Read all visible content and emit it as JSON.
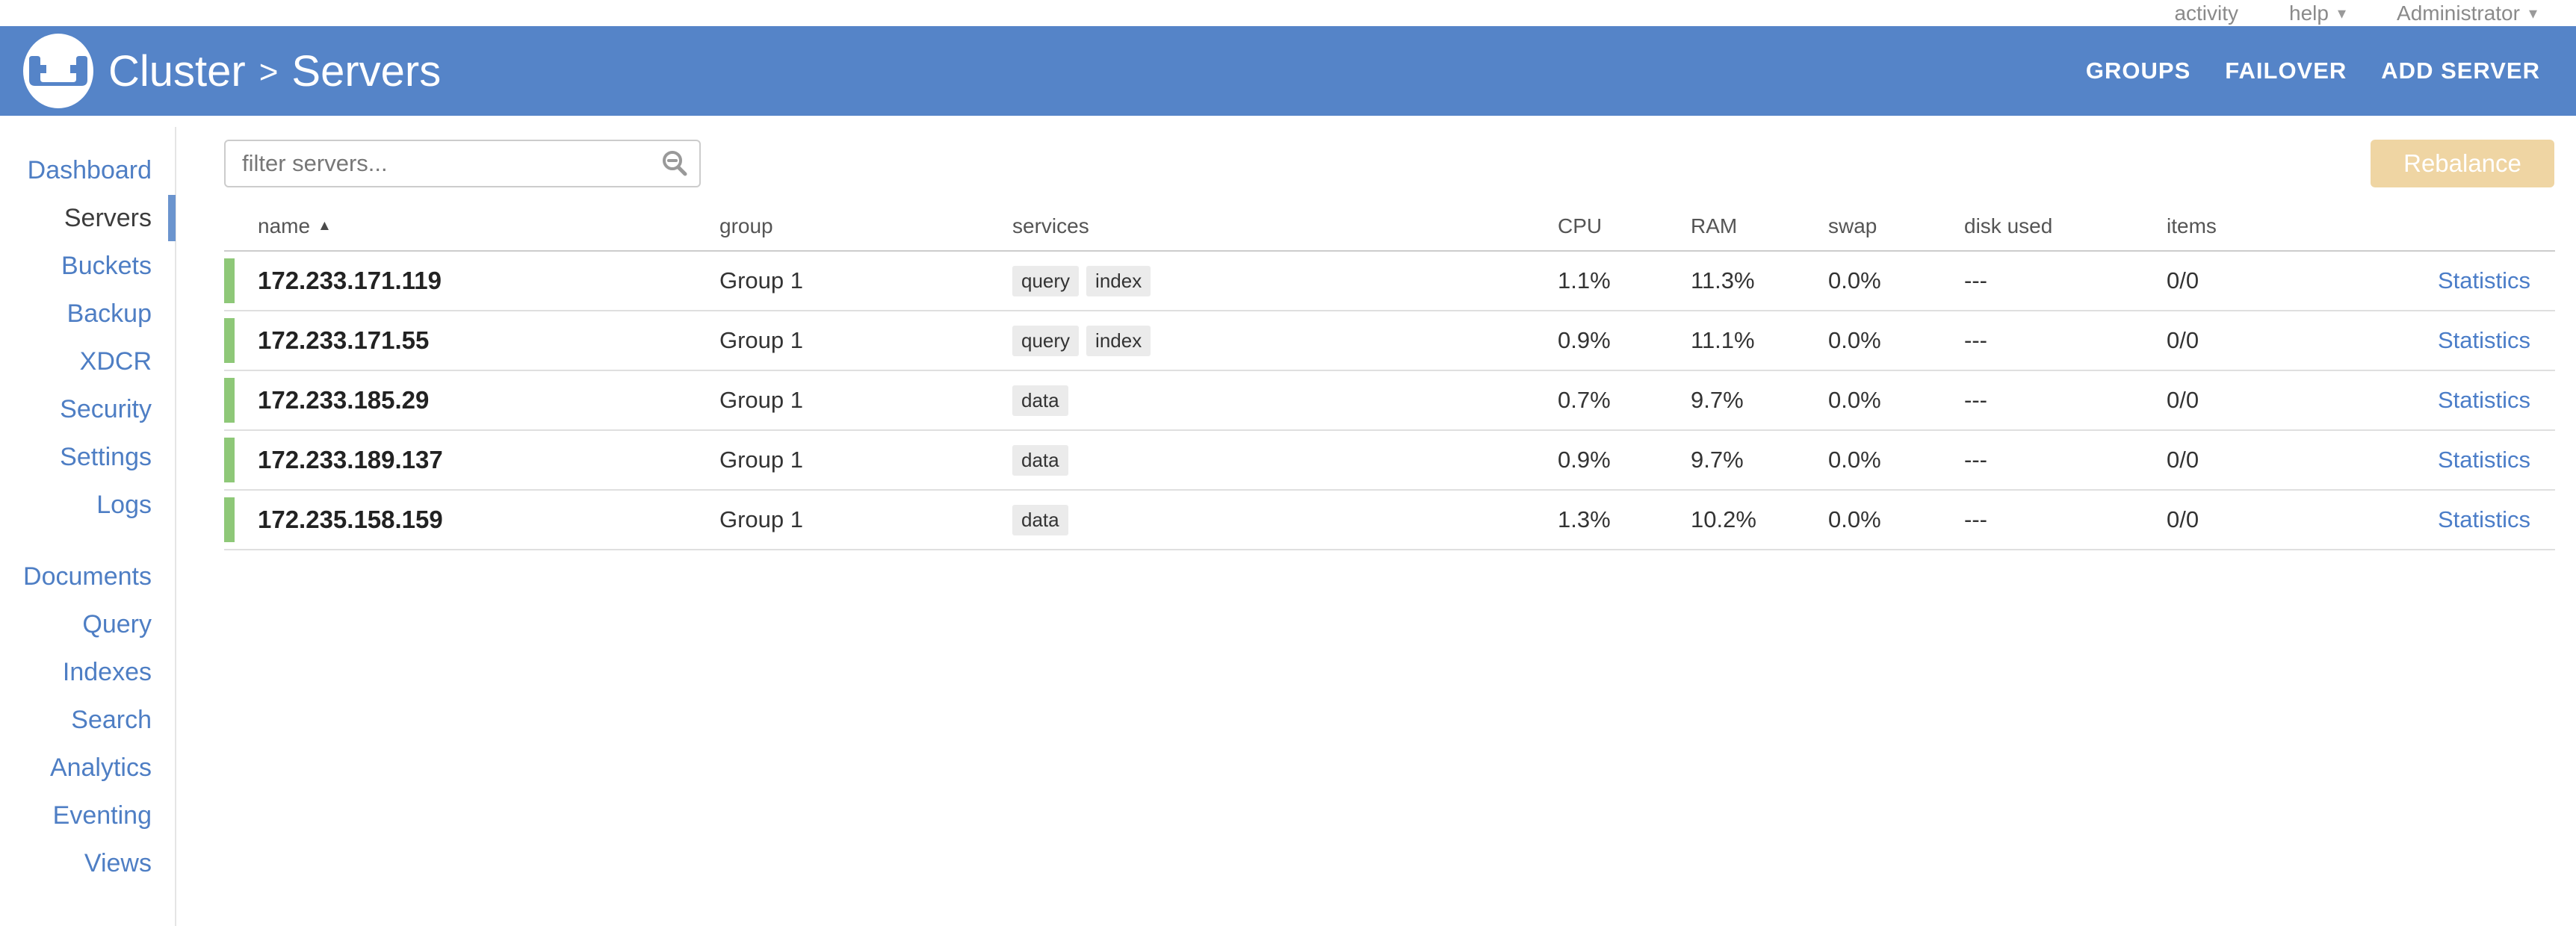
{
  "topbar": {
    "caret_icon": "▾",
    "links": [
      {
        "label": "activity",
        "caret": false
      },
      {
        "label": "help",
        "caret": true
      },
      {
        "label": "Administrator",
        "caret": true
      }
    ]
  },
  "appbar": {
    "title": {
      "cluster": "Cluster",
      "separator": ">",
      "section": "Servers"
    },
    "actions": [
      "GROUPS",
      "FAILOVER",
      "ADD SERVER"
    ]
  },
  "sidebar": {
    "active": "Servers",
    "primary": [
      "Dashboard",
      "Servers",
      "Buckets",
      "Backup",
      "XDCR",
      "Security",
      "Settings",
      "Logs"
    ],
    "secondary": [
      "Documents",
      "Query",
      "Indexes",
      "Search",
      "Analytics",
      "Eventing",
      "Views"
    ]
  },
  "toolbar": {
    "filter_placeholder": "filter servers...",
    "rebalance_label": "Rebalance"
  },
  "table": {
    "columns": [
      "name",
      "group",
      "services",
      "CPU",
      "RAM",
      "swap",
      "disk used",
      "items"
    ],
    "sort_column": "name",
    "sort_icon": "▲",
    "action_label": "Statistics",
    "rows": [
      {
        "name": "172.233.171.119",
        "group": "Group 1",
        "services": [
          "query",
          "index"
        ],
        "cpu": "1.1%",
        "ram": "11.3%",
        "swap": "0.0%",
        "disk_used": "---",
        "items": "0/0"
      },
      {
        "name": "172.233.171.55",
        "group": "Group 1",
        "services": [
          "query",
          "index"
        ],
        "cpu": "0.9%",
        "ram": "11.1%",
        "swap": "0.0%",
        "disk_used": "---",
        "items": "0/0"
      },
      {
        "name": "172.233.185.29",
        "group": "Group 1",
        "services": [
          "data"
        ],
        "cpu": "0.7%",
        "ram": "9.7%",
        "swap": "0.0%",
        "disk_used": "---",
        "items": "0/0"
      },
      {
        "name": "172.233.189.137",
        "group": "Group 1",
        "services": [
          "data"
        ],
        "cpu": "0.9%",
        "ram": "9.7%",
        "swap": "0.0%",
        "disk_used": "---",
        "items": "0/0"
      },
      {
        "name": "172.235.158.159",
        "group": "Group 1",
        "services": [
          "data"
        ],
        "cpu": "1.3%",
        "ram": "10.2%",
        "swap": "0.0%",
        "disk_used": "---",
        "items": "0/0"
      }
    ]
  },
  "colors": {
    "appbar_blue": "#5584c8",
    "link_blue": "#4e7ec4",
    "active_marker_blue": "#6b94ce",
    "health_green": "#8ec878",
    "rebalance_tan": "#efd5a3",
    "badge_gray": "#ebebeb",
    "statistics_link_blue": "#4b7dc8"
  }
}
